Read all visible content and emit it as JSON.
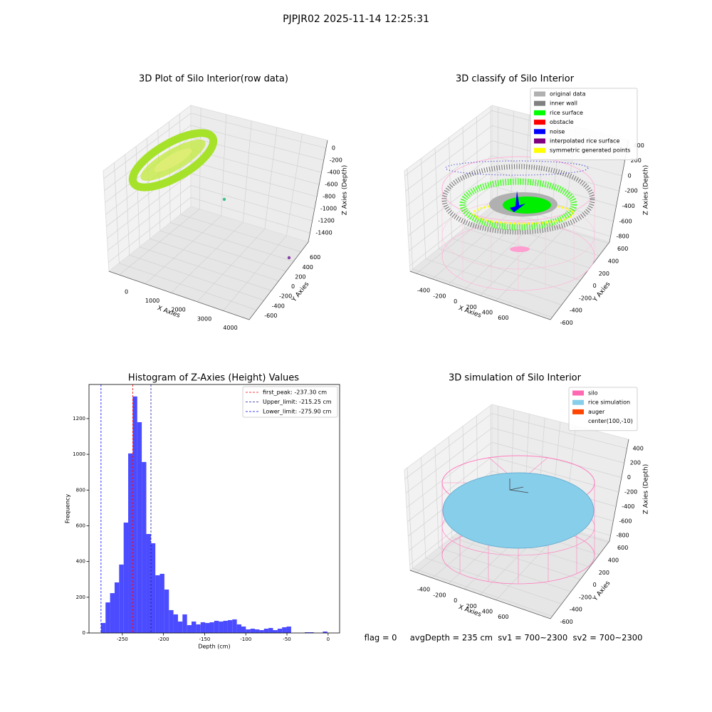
{
  "title": "PJPJR02 2025-11-14 12:25:31",
  "footer": "flag = 0     avgDepth = 235 cm  sv1 = 700~2300  sv2 = 700~2300",
  "chart_data": [
    {
      "type": "scatter3d",
      "title": "3D Plot of Silo Interior(row data)",
      "xlabel": "X Axies",
      "ylabel": "Y Axies",
      "zlabel": "Z Axies (Depth)",
      "xlim": [
        -400,
        5000
      ],
      "ylim": [
        -800,
        800
      ],
      "zlim": [
        -1550,
        130
      ],
      "xticks": [
        0,
        1000,
        2000,
        3000,
        4000
      ],
      "yticks": [
        -600,
        -400,
        -200,
        0,
        200,
        400,
        600
      ],
      "zticks": [
        0,
        -200,
        -400,
        -600,
        -800,
        -1000,
        -1200,
        -1400
      ]
    },
    {
      "type": "scatter3d",
      "title": "3D classify of Silo Interior",
      "xlabel": "X Axies",
      "ylabel": "Y Axies",
      "zlabel": "Z Axies (Depth)",
      "xlim": [
        -480,
        1280
      ],
      "ylim": [
        -640,
        620
      ],
      "zlim": [
        -875,
        470
      ],
      "xticks": [
        -400,
        -200,
        0,
        200,
        400,
        600
      ],
      "yticks": [
        -600,
        -400,
        -200,
        0,
        200,
        400,
        600
      ],
      "zticks": [
        400,
        200,
        0,
        -200,
        -400,
        -600,
        -800
      ],
      "legend": [
        {
          "name": "original data",
          "color": "#b0b0b0"
        },
        {
          "name": "inner wall",
          "color": "#808080"
        },
        {
          "name": "rice surface",
          "color": "#00ff00"
        },
        {
          "name": "obstacle",
          "color": "#ff0000"
        },
        {
          "name": "noise",
          "color": "#0000ff"
        },
        {
          "name": "interpolated rice surface",
          "color": "#800080"
        },
        {
          "name": "symmetric generated points",
          "color": "#ffff00"
        }
      ]
    },
    {
      "type": "histogram",
      "title": "Histogram of Z-Axies (Height) Values",
      "xlabel": "Depth (cm)",
      "ylabel": "Frequency",
      "color": "#4b4bff",
      "xlim": [
        -290.5,
        14
      ],
      "ylim": [
        0,
        1391
      ],
      "xticks": [
        -250,
        -200,
        -150,
        -100,
        -50,
        0
      ],
      "yticks": [
        0,
        200,
        400,
        600,
        800,
        1000,
        1200
      ],
      "bins": [
        -275.9,
        -270.4,
        -264.9,
        -259.4,
        -253.9,
        -248.4,
        -242.9,
        -237.4,
        -231.9,
        -226.4,
        -220.9,
        -215.4,
        -209.9,
        -204.4,
        -198.9,
        -193.4,
        -187.9,
        -182.4,
        -176.9,
        -171.4,
        -165.9,
        -160.4,
        -154.9,
        -149.4,
        -143.9,
        -138.4,
        -132.9,
        -127.4,
        -121.9,
        -116.4,
        -110.9,
        -105.4,
        -99.9,
        -94.4,
        -88.9,
        -83.4,
        -77.9,
        -72.4,
        -66.9,
        -61.4,
        -55.9,
        -50.4,
        -44.9,
        -39.4,
        -33.9,
        -28.4,
        -22.9,
        -17.4,
        -11.9,
        -6.4,
        -0.9
      ],
      "values": [
        56,
        171,
        223,
        283,
        383,
        618,
        1005,
        1324,
        1180,
        957,
        554,
        502,
        323,
        331,
        243,
        128,
        104,
        64,
        104,
        44,
        64,
        48,
        60,
        56,
        60,
        68,
        64,
        68,
        72,
        76,
        48,
        36,
        20,
        24,
        20,
        16,
        24,
        28,
        16,
        24,
        32,
        36,
        0,
        0,
        0,
        4,
        4,
        0,
        0,
        8
      ],
      "lines": [
        {
          "name": "first_peak: -237.30 cm",
          "value": -237.3,
          "color": "red"
        },
        {
          "name": "Upper_limit: -215.25 cm",
          "value": -215.25,
          "color": "#1a1aa0"
        },
        {
          "name": "Lower_limit: -275.90 cm",
          "value": -275.9,
          "color": "blue"
        }
      ]
    },
    {
      "type": "scatter3d",
      "title": "3D simulation of Silo Interior",
      "xlabel": "X Axies",
      "ylabel": "Y Axies",
      "zlabel": "Z Axies (Depth)",
      "xlim": [
        -480,
        1280
      ],
      "ylim": [
        -640,
        620
      ],
      "zlim": [
        -877,
        526
      ],
      "xticks": [
        -400,
        -200,
        0,
        200,
        400,
        600
      ],
      "yticks": [
        -600,
        -400,
        -200,
        0,
        200,
        400,
        600
      ],
      "zticks": [
        400,
        200,
        0,
        -200,
        -400,
        -600,
        -800
      ],
      "legend": [
        {
          "name": "silo",
          "color": "#ff69b4"
        },
        {
          "name": "rice simulation",
          "color": "#87ceeb"
        },
        {
          "name": "auger",
          "color": "#ff4500"
        },
        {
          "name": "center(100,-10)"
        }
      ]
    }
  ]
}
